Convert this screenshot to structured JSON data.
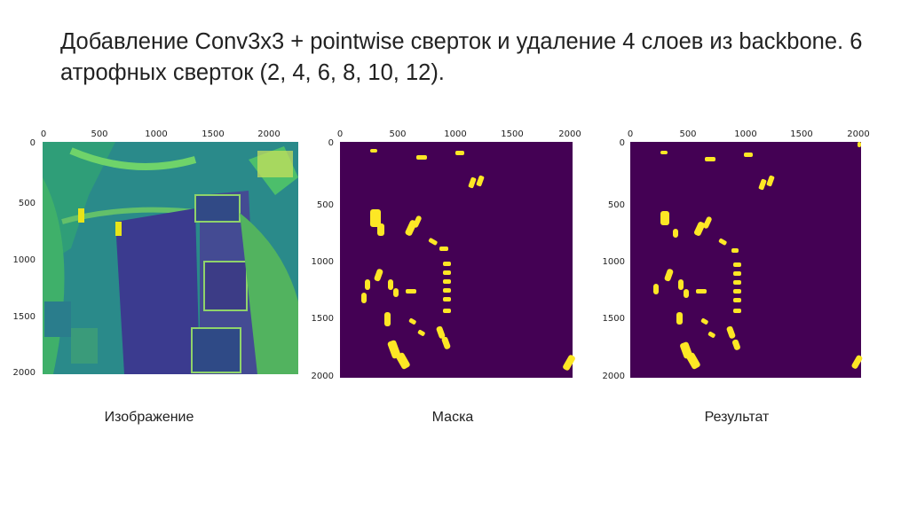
{
  "slide": {
    "title": "Добавление Conv3x3 + pointwise сверток и удаление 4 слоев из backbone. 6 атрофных сверток (2, 4, 6, 8, 10, 12)."
  },
  "axis_ticks": {
    "x": [
      "0",
      "500",
      "1000",
      "1500",
      "2000"
    ],
    "y": [
      "0",
      "500",
      "1000",
      "1500",
      "2000"
    ]
  },
  "panels": [
    {
      "caption": "Изображение"
    },
    {
      "caption": "Маска"
    },
    {
      "caption": "Результат"
    }
  ],
  "colors": {
    "background_mask": "#440154",
    "object_mask": "#fde725",
    "aerial_dark": "#3b3b8f",
    "aerial_mid": "#2a8a8a",
    "aerial_light": "#5ec962"
  }
}
